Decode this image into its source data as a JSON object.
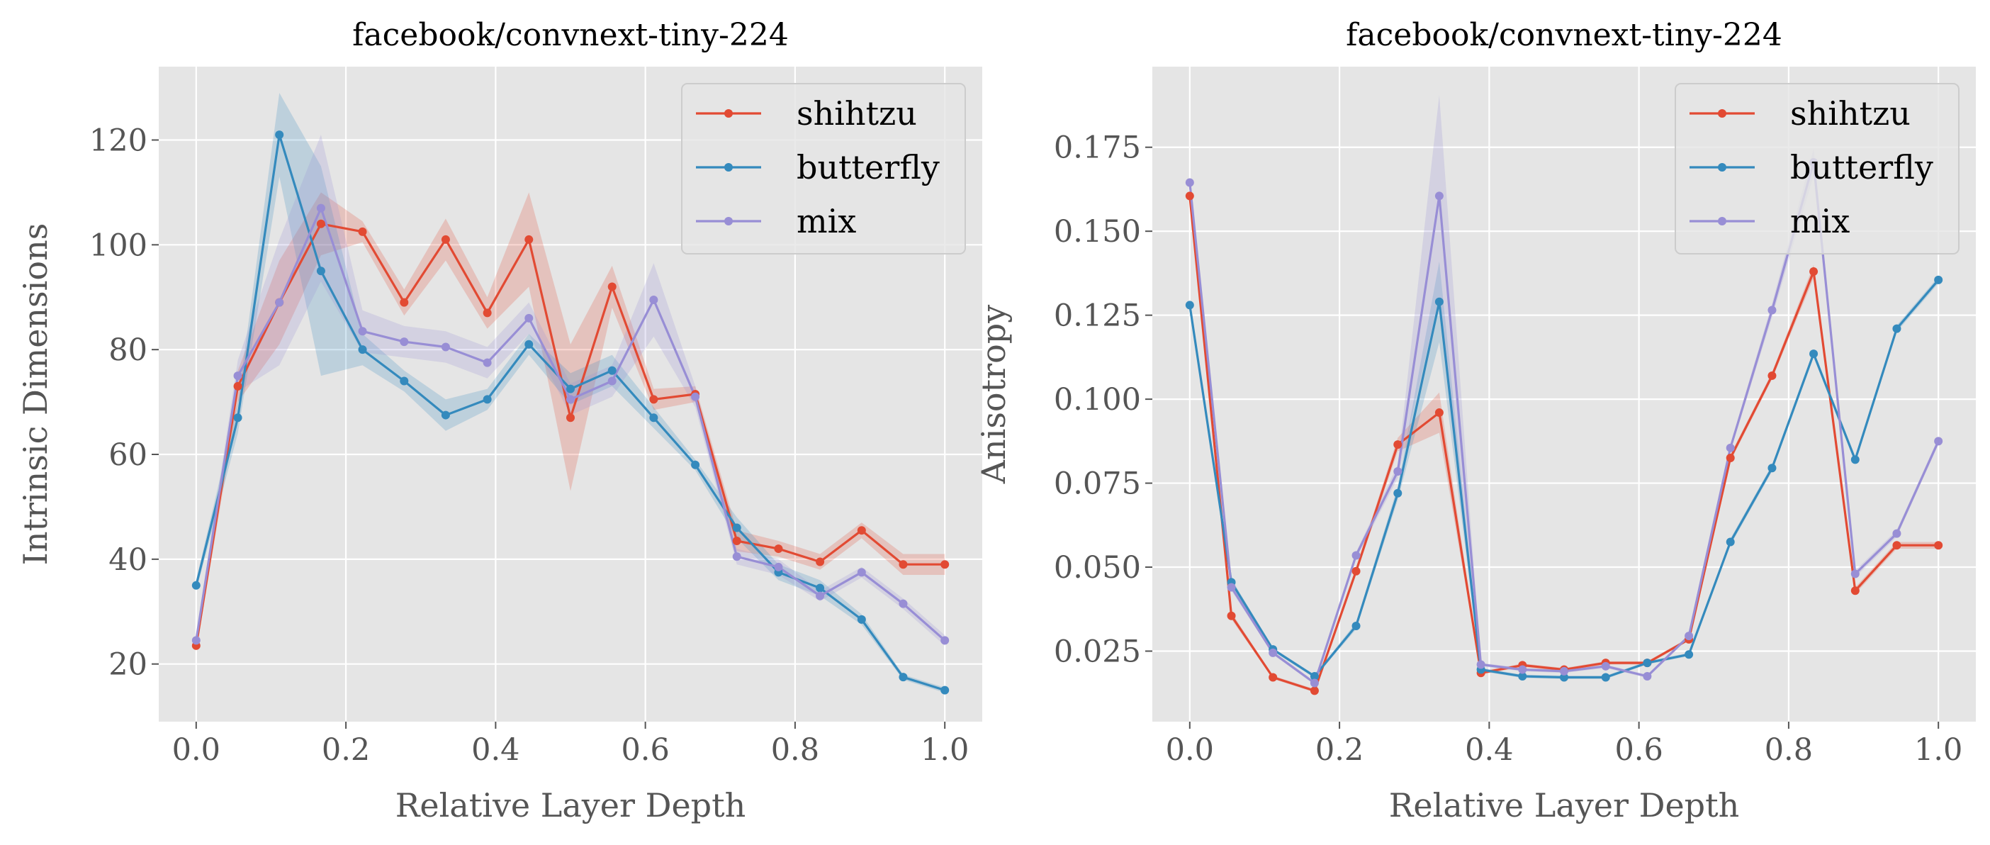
{
  "charts": [
    {
      "type": "line",
      "title": "facebook/convnext-tiny-224",
      "xlabel": "Relative Layer Depth",
      "ylabel": "Intrinsic Dimensions",
      "xlim": [
        -0.05,
        1.05
      ],
      "ylim": [
        9,
        134
      ],
      "xticks": [
        "0.0",
        "0.2",
        "0.4",
        "0.6",
        "0.8",
        "1.0"
      ],
      "xtick_values": [
        0.0,
        0.2,
        0.4,
        0.6,
        0.8,
        1.0
      ],
      "yticks": [
        "20",
        "40",
        "60",
        "80",
        "100",
        "120"
      ],
      "ytick_values": [
        20,
        40,
        60,
        80,
        100,
        120
      ],
      "grid": true,
      "legend": "top-right",
      "x": [
        0.0,
        0.0556,
        0.1111,
        0.1667,
        0.2222,
        0.2778,
        0.3333,
        0.3889,
        0.4444,
        0.5,
        0.5556,
        0.6111,
        0.6667,
        0.7222,
        0.7778,
        0.8333,
        0.8889,
        0.9444,
        1.0
      ],
      "series": [
        {
          "name": "shihtzu",
          "color": "#E24A33",
          "values": [
            23.5,
            73,
            89,
            104,
            102.5,
            89,
            101,
            87,
            101,
            67,
            92,
            70.5,
            71.5,
            43.5,
            42,
            39.5,
            45.5,
            39,
            39
          ],
          "band": [
            1,
            3,
            8,
            6,
            2,
            2.5,
            4,
            3,
            9,
            14,
            4,
            2,
            1.5,
            2,
            1.5,
            1.5,
            1.5,
            2,
            2
          ]
        },
        {
          "name": "butterfly",
          "color": "#348ABD",
          "values": [
            35,
            67,
            121,
            95,
            80,
            74,
            67.5,
            70.5,
            81,
            72.5,
            76,
            67,
            58,
            46,
            37.5,
            34.5,
            28.5,
            17.5,
            15
          ],
          "band": [
            1,
            3,
            8,
            20,
            3,
            2,
            3,
            2,
            2,
            3,
            3,
            2,
            1,
            2,
            1.5,
            1.5,
            1,
            0.5,
            0.5
          ]
        },
        {
          "name": "mix",
          "color": "#988ED5",
          "values": [
            24.5,
            75,
            89,
            107,
            83.5,
            81.5,
            80.5,
            77.5,
            86,
            70.5,
            74,
            89.5,
            71,
            40.5,
            38.5,
            33,
            37.5,
            31.5,
            24.5
          ],
          "band": [
            1,
            3,
            12,
            14,
            4,
            3,
            3,
            3,
            3,
            3,
            3,
            7,
            2,
            1.5,
            1.5,
            1,
            1,
            1,
            1
          ]
        }
      ]
    },
    {
      "type": "line",
      "title": "facebook/convnext-tiny-224",
      "xlabel": "Relative Layer Depth",
      "ylabel": "Anisotropy",
      "xlim": [
        -0.05,
        1.05
      ],
      "ylim": [
        0.004,
        0.199
      ],
      "xticks": [
        "0.0",
        "0.2",
        "0.4",
        "0.6",
        "0.8",
        "1.0"
      ],
      "xtick_values": [
        0.0,
        0.2,
        0.4,
        0.6,
        0.8,
        1.0
      ],
      "yticks": [
        "0.025",
        "0.050",
        "0.075",
        "0.100",
        "0.125",
        "0.150",
        "0.175"
      ],
      "ytick_values": [
        0.025,
        0.05,
        0.075,
        0.1,
        0.125,
        0.15,
        0.175
      ],
      "grid": true,
      "legend": "top-right",
      "x": [
        0.0,
        0.0556,
        0.1111,
        0.1667,
        0.2222,
        0.2778,
        0.3333,
        0.3889,
        0.4444,
        0.5,
        0.5556,
        0.6111,
        0.6667,
        0.7222,
        0.7778,
        0.8333,
        0.8889,
        0.9444,
        1.0
      ],
      "series": [
        {
          "name": "shihtzu",
          "color": "#E24A33",
          "values": [
            0.1605,
            0.0355,
            0.0172,
            0.0132,
            0.0488,
            0.0865,
            0.096,
            0.0185,
            0.0208,
            0.0195,
            0.0215,
            0.0215,
            0.0285,
            0.0825,
            0.107,
            0.138,
            0.043,
            0.0565,
            0.0565
          ],
          "band": [
            0.002,
            0.001,
            0.0005,
            0.0005,
            0.001,
            0.002,
            0.006,
            0.0005,
            0.0005,
            0.0005,
            0.0005,
            0.0005,
            0.0005,
            0.001,
            0.001,
            0.002,
            0.001,
            0.001,
            0.001
          ]
        },
        {
          "name": "butterfly",
          "color": "#348ABD",
          "values": [
            0.128,
            0.0455,
            0.0255,
            0.0175,
            0.0325,
            0.072,
            0.129,
            0.0195,
            0.0175,
            0.0172,
            0.0172,
            0.0215,
            0.024,
            0.0575,
            0.0795,
            0.1135,
            0.082,
            0.121,
            0.1355
          ],
          "band": [
            0.001,
            0.001,
            0.0005,
            0.0005,
            0.001,
            0.002,
            0.012,
            0.0005,
            0.0005,
            0.0005,
            0.0005,
            0.0005,
            0.0005,
            0.001,
            0.001,
            0.001,
            0.001,
            0.001,
            0.001
          ]
        },
        {
          "name": "mix",
          "color": "#988ED5",
          "values": [
            0.1645,
            0.044,
            0.0245,
            0.0155,
            0.0535,
            0.0785,
            0.1605,
            0.021,
            0.0195,
            0.019,
            0.0205,
            0.0175,
            0.0295,
            0.0855,
            0.1265,
            0.1705,
            0.048,
            0.06,
            0.0875
          ],
          "band": [
            0.001,
            0.001,
            0.0005,
            0.0005,
            0.001,
            0.002,
            0.03,
            0.0005,
            0.0005,
            0.0005,
            0.0005,
            0.0005,
            0.0005,
            0.001,
            0.002,
            0.004,
            0.001,
            0.001,
            0.001
          ]
        }
      ]
    }
  ]
}
